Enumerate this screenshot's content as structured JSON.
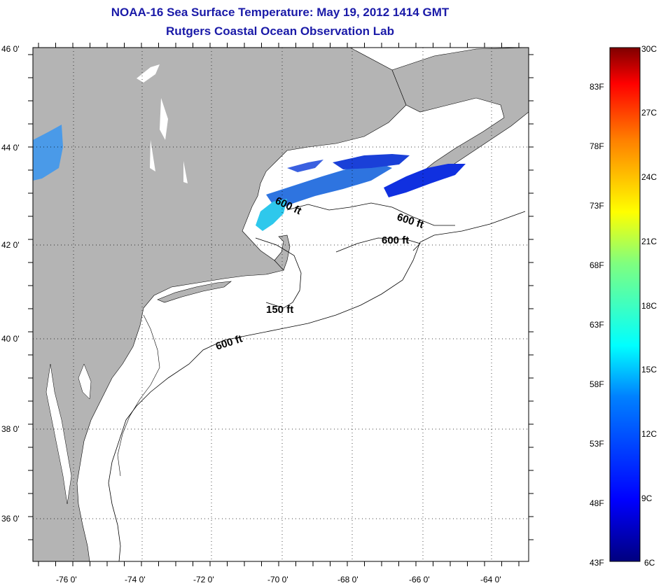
{
  "title": {
    "line1": "NOAA-16 Sea Surface Temperature:  May 19, 2012 1414 GMT",
    "line2": "Rutgers Coastal Ocean Observation Lab"
  },
  "colors": {
    "land": "#b4b4b4",
    "ocean": "#ffffff",
    "title": "#1a1aa8",
    "grid": "#000000"
  },
  "axes": {
    "lat_labels": [
      "46 0'",
      "44 0'",
      "42 0'",
      "40 0'",
      "38 0'",
      "36 0'"
    ],
    "lon_labels": [
      "-76 0'",
      "-74 0'",
      "-72 0'",
      "-70 0'",
      "-68 0'",
      "-66 0'",
      "-64 0'"
    ],
    "lat_range": [
      35.0,
      46.0
    ],
    "lon_range": [
      -77.0,
      -62.3
    ]
  },
  "contours": [
    {
      "label": "600 ft"
    },
    {
      "label": "600 ft"
    },
    {
      "label": "600 ft"
    },
    {
      "label": "150 ft"
    },
    {
      "label": "600 ft"
    }
  ],
  "colorbar": {
    "min_label": "43F",
    "max_label": "30C",
    "bottom_label": "6C",
    "f_labels": [
      "83F",
      "78F",
      "73F",
      "68F",
      "63F",
      "58F",
      "53F",
      "48F",
      "43F"
    ],
    "c_labels": [
      "30C",
      "27C",
      "24C",
      "21C",
      "18C",
      "15C",
      "12C",
      "9C",
      "6C"
    ]
  }
}
